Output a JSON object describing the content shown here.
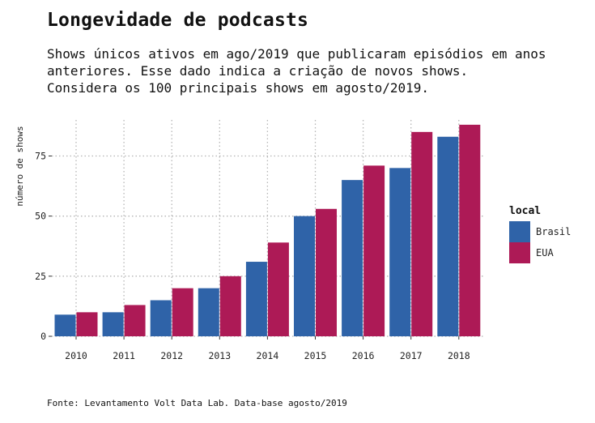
{
  "chart_data": {
    "type": "bar",
    "title": "Longevidade de podcasts",
    "subtitle": [
      "Shows únicos ativos em ago/2019 que publicaram episódios em anos",
      "anteriores. Esse dado indica a criação de novos shows.",
      "Considera os 100 principais shows em agosto/2019."
    ],
    "xlabel": "",
    "ylabel": "número de shows",
    "categories": [
      "2010",
      "2011",
      "2012",
      "2013",
      "2014",
      "2015",
      "2016",
      "2017",
      "2018"
    ],
    "series": [
      {
        "name": "Brasil",
        "color": "#2F63A8",
        "values": [
          9,
          10,
          15,
          20,
          31,
          50,
          65,
          70,
          83
        ]
      },
      {
        "name": "EUA",
        "color": "#AD1A56",
        "values": [
          10,
          13,
          20,
          25,
          39,
          53,
          71,
          85,
          88
        ]
      }
    ],
    "ylim": [
      0,
      90
    ],
    "yticks": [
      0,
      25,
      50,
      75
    ],
    "ytick_labels": [
      "0",
      "25",
      "50",
      "75"
    ],
    "grid": true,
    "legend_title": "local",
    "legend_position": "right",
    "caption": "Fonte: Levantamento Volt Data Lab. Data-base agosto/2019"
  }
}
